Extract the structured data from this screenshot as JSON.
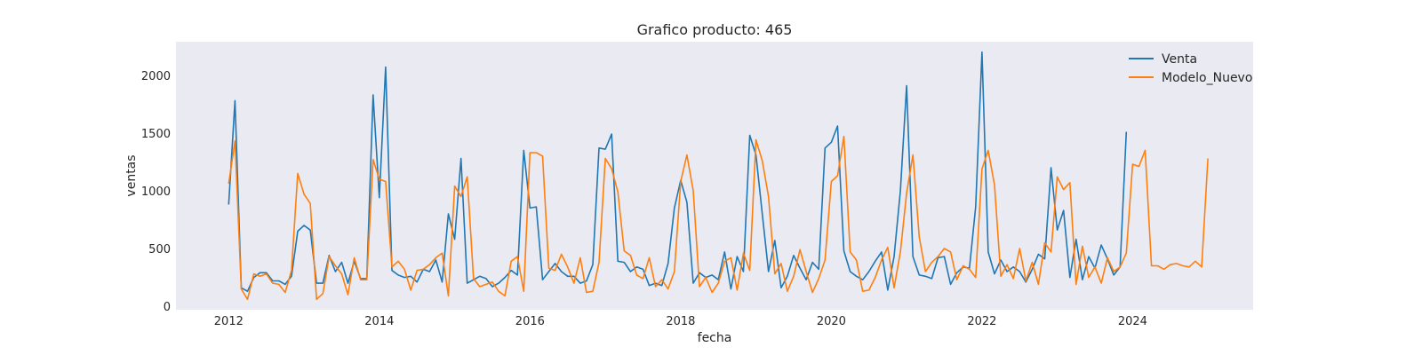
{
  "chart_data": {
    "type": "line",
    "title": "Grafico producto: 465",
    "xlabel": "fecha",
    "ylabel": "ventas",
    "xlim": [
      2011.3,
      2025.6
    ],
    "ylim": [
      -30,
      2290
    ],
    "x_ticks": [
      2012,
      2014,
      2016,
      2018,
      2020,
      2022,
      2024
    ],
    "x_tick_labels": [
      "2012",
      "2014",
      "2016",
      "2018",
      "2020",
      "2022",
      "2024"
    ],
    "y_ticks": [
      0,
      500,
      1000,
      1500,
      2000
    ],
    "y_tick_labels": [
      "0",
      "500",
      "1000",
      "1500",
      "2000"
    ],
    "grid": false,
    "background": "#eaeaf2",
    "legend": {
      "placement": "top-right"
    },
    "series": [
      {
        "name": "Venta",
        "color": "#1f77b4",
        "start": "2012-01",
        "values": [
          880,
          1780,
          160,
          130,
          250,
          290,
          290,
          220,
          220,
          190,
          260,
          650,
          700,
          660,
          200,
          200,
          440,
          300,
          380,
          200,
          390,
          240,
          240,
          1830,
          940,
          2070,
          310,
          270,
          250,
          260,
          210,
          320,
          300,
          400,
          210,
          800,
          580,
          1280,
          200,
          230,
          260,
          240,
          170,
          200,
          250,
          310,
          270,
          1350,
          850,
          860,
          230,
          300,
          370,
          300,
          260,
          260,
          200,
          220,
          360,
          1370,
          1360,
          1490,
          390,
          380,
          300,
          340,
          320,
          180,
          200,
          180,
          370,
          850,
          1090,
          900,
          200,
          290,
          250,
          270,
          230,
          470,
          150,
          430,
          300,
          1480,
          1310,
          800,
          300,
          570,
          160,
          260,
          440,
          330,
          230,
          380,
          320,
          1370,
          1420,
          1560,
          480,
          300,
          260,
          230,
          300,
          390,
          470,
          140,
          430,
          1000,
          1910,
          430,
          270,
          260,
          240,
          420,
          430,
          190,
          290,
          340,
          330,
          860,
          2200,
          470,
          280,
          400,
          300,
          340,
          300,
          210,
          320,
          450,
          410,
          1200,
          660,
          830,
          250,
          580,
          230,
          430,
          330,
          530,
          410,
          270,
          340,
          1510
        ]
      },
      {
        "name": "Modelo_Nuevo",
        "color": "#ff7f0e",
        "start": "2012-01",
        "values": [
          1060,
          1430,
          150,
          60,
          280,
          260,
          280,
          200,
          190,
          120,
          310,
          1150,
          970,
          890,
          60,
          110,
          430,
          350,
          280,
          100,
          420,
          230,
          230,
          1270,
          1100,
          1080,
          340,
          390,
          320,
          140,
          310,
          320,
          360,
          420,
          460,
          90,
          1040,
          950,
          1120,
          240,
          170,
          190,
          210,
          130,
          90,
          390,
          430,
          130,
          1330,
          1330,
          1300,
          330,
          310,
          450,
          340,
          200,
          420,
          120,
          130,
          380,
          1280,
          1190,
          990,
          480,
          440,
          270,
          240,
          420,
          170,
          230,
          150,
          300,
          1080,
          1310,
          1000,
          170,
          250,
          120,
          200,
          390,
          420,
          140,
          460,
          310,
          1440,
          1260,
          950,
          280,
          370,
          130,
          260,
          490,
          300,
          120,
          240,
          400,
          1080,
          1130,
          1470,
          470,
          400,
          130,
          140,
          250,
          400,
          510,
          160,
          470,
          980,
          1310,
          600,
          300,
          380,
          430,
          500,
          470,
          230,
          350,
          320,
          250,
          1190,
          1350,
          1050,
          260,
          360,
          240,
          500,
          220,
          380,
          190,
          550,
          470,
          1120,
          1010,
          1070,
          190,
          520,
          250,
          340,
          200,
          420,
          300,
          340,
          460,
          1230,
          1210,
          1350,
          350,
          350,
          320,
          360,
          370,
          350,
          340,
          390,
          340,
          1280
        ]
      }
    ]
  }
}
